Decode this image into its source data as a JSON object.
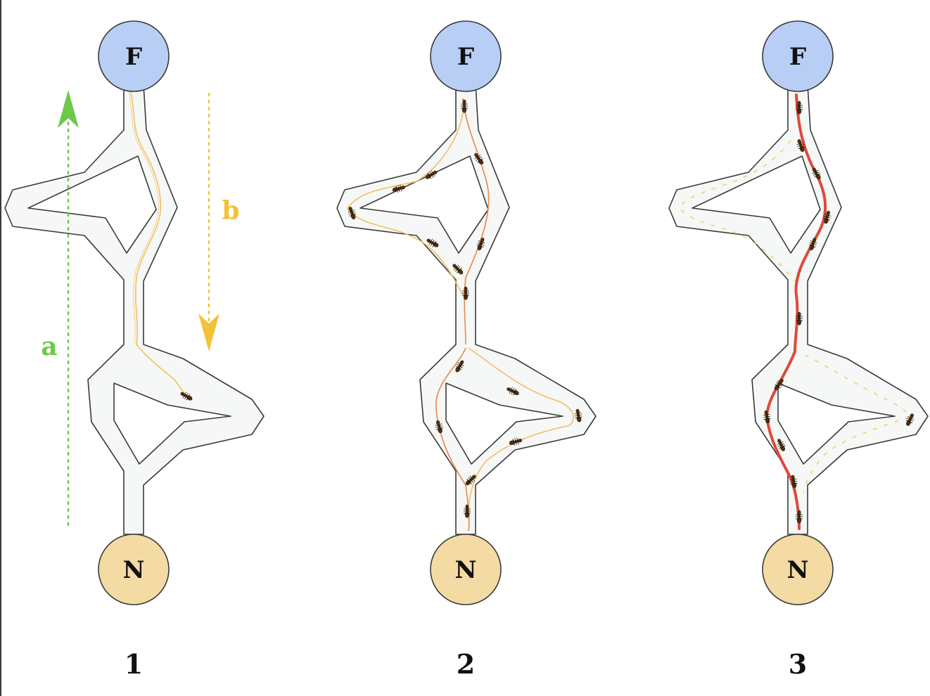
{
  "panels": [
    {
      "number": "1",
      "food_label": "F",
      "nest_label": "N"
    },
    {
      "number": "2",
      "food_label": "F",
      "nest_label": "N"
    },
    {
      "number": "3",
      "food_label": "F",
      "nest_label": "N"
    }
  ],
  "arrows": {
    "a_label": "a",
    "b_label": "b"
  },
  "colors": {
    "food_node": "#b8cef4",
    "nest_node": "#f4dba4",
    "corridor_fill": "#f6f7f7",
    "outline": "#3a3a3a",
    "arrow_a": "#6cc94a",
    "arrow_b": "#f2c23a",
    "trail_weak": "#f0c060",
    "trail_medium": "#e8884a",
    "trail_strong": "#dd4a3a",
    "ant": "#4a2e12"
  }
}
